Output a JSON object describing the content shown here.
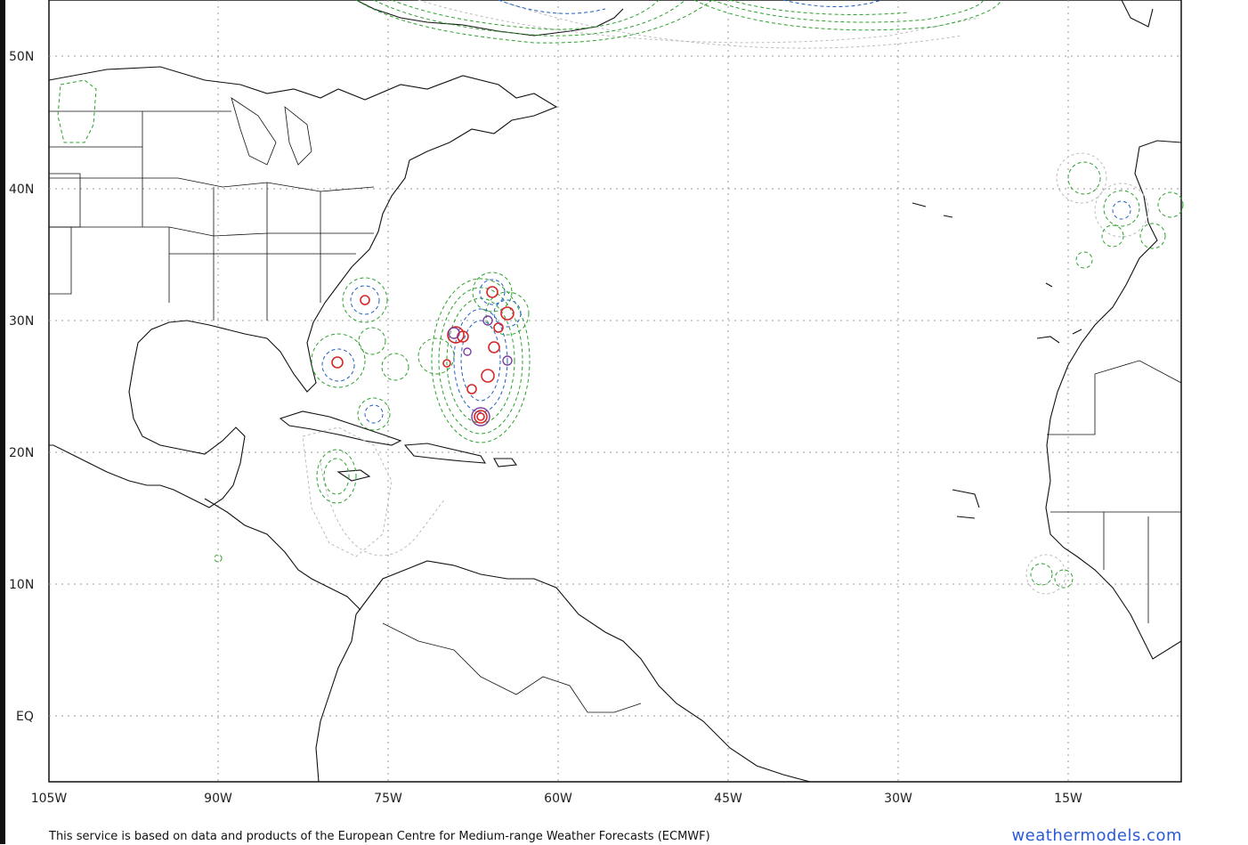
{
  "map": {
    "lon_labels": [
      "105W",
      "90W",
      "75W",
      "60W",
      "45W",
      "30W",
      "15W"
    ],
    "lat_labels": [
      "50N",
      "40N",
      "30N",
      "20N",
      "10N",
      "EQ"
    ],
    "colors": {
      "green_contour": "#2ca02c",
      "blue_contour": "#1f5fbf",
      "red_contour": "#d62728",
      "gray_contour": "#bbbbbb",
      "coastline": "#111111"
    }
  },
  "footer": {
    "attribution": "This service is based on data and products of the European Centre for Medium-range Weather Forecasts (ECMWF)",
    "brand": "weathermodels.com"
  }
}
